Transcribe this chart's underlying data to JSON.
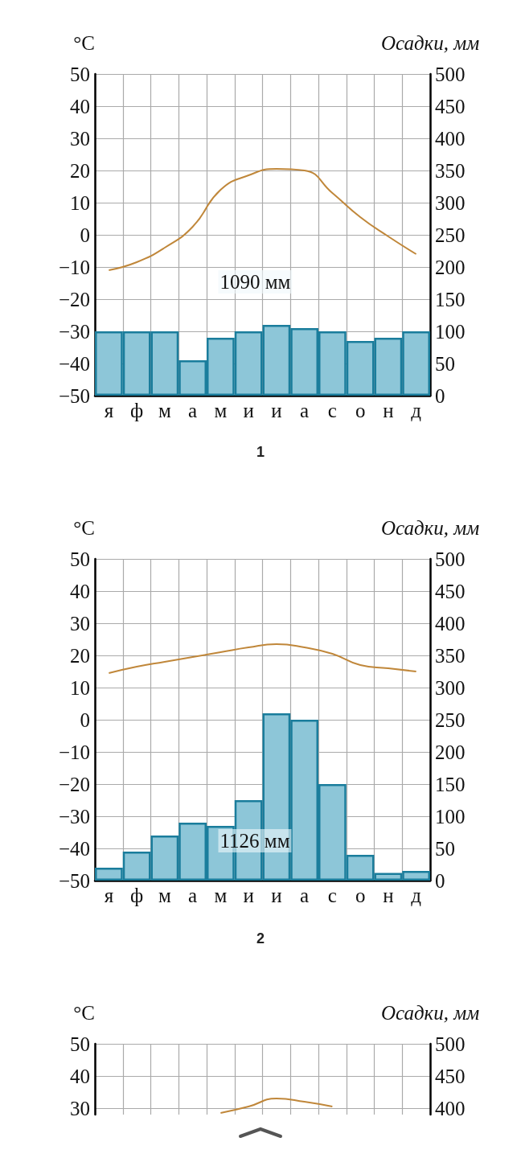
{
  "chart_data": [
    {
      "type": "bar",
      "title": "1",
      "ylabel": "°C",
      "y2label": "Осадки, мм",
      "categories": [
        "я",
        "ф",
        "м",
        "а",
        "м",
        "и",
        "и",
        "а",
        "с",
        "о",
        "н",
        "д"
      ],
      "series": [
        {
          "axis": "y2",
          "color": "#8dc6d8",
          "values": [
            100,
            100,
            100,
            55,
            90,
            100,
            110,
            105,
            100,
            85,
            90,
            100
          ]
        },
        {
          "type": "line",
          "color": "#c0873a",
          "values": [
            -11,
            -8.5,
            -4,
            2.5,
            14,
            18.5,
            20.5,
            20,
            13,
            5.5,
            -0.5,
            -6
          ]
        }
      ],
      "ylim": [
        -50,
        50
      ],
      "yticks": [
        {
          "value": -50,
          "label": "−50"
        },
        {
          "value": -40,
          "label": "−40"
        },
        {
          "value": -30,
          "label": "−30"
        },
        {
          "value": -20,
          "label": "−20"
        },
        {
          "value": -10,
          "label": "−10"
        },
        0,
        10,
        20,
        30,
        40,
        50
      ],
      "y2lim": [
        0,
        500
      ],
      "y2ticks": [
        0,
        50,
        100,
        150,
        200,
        250,
        300,
        350,
        400,
        450,
        500
      ],
      "annotations": [
        "1090 мм"
      ],
      "grid": true,
      "marker": "none"
    },
    {
      "type": "bar",
      "title": "2",
      "ylabel": "°C",
      "y2label": "Осадки, мм",
      "categories": [
        "я",
        "ф",
        "м",
        "а",
        "м",
        "и",
        "и",
        "а",
        "с",
        "о",
        "н",
        "д"
      ],
      "series": [
        {
          "axis": "y2",
          "color": "#8dc6d8",
          "values": [
            20,
            45,
            70,
            90,
            85,
            125,
            260,
            250,
            150,
            40,
            12,
            15
          ]
        },
        {
          "type": "line",
          "color": "#c0873a",
          "values": [
            14.5,
            16.5,
            18,
            19.5,
            21,
            22.5,
            23.5,
            22.5,
            20.5,
            17,
            16,
            15
          ]
        }
      ],
      "ylim": [
        -50,
        50
      ],
      "yticks": [
        {
          "value": -50,
          "label": "−50"
        },
        {
          "value": -40,
          "label": "−40"
        },
        {
          "value": -30,
          "label": "−30"
        },
        {
          "value": -20,
          "label": "−20"
        },
        {
          "value": -10,
          "label": "−10"
        },
        0,
        10,
        20,
        30,
        40,
        50
      ],
      "y2lim": [
        0,
        500
      ],
      "y2ticks": [
        0,
        50,
        100,
        150,
        200,
        250,
        300,
        350,
        400,
        450,
        500
      ],
      "annotations": [
        "1126 мм"
      ],
      "grid": true,
      "marker": "none"
    },
    {
      "type": "line",
      "ylabel": "°C",
      "y2label": "Осадки, мм",
      "categories": [
        null,
        null,
        null,
        null,
        null,
        null,
        null,
        null,
        null,
        null,
        null,
        null
      ],
      "series": [
        {
          "color": "#c0873a",
          "values": [
            null,
            null,
            null,
            null,
            28.5,
            30.5,
            33,
            32,
            30.5,
            null,
            null,
            null
          ]
        }
      ],
      "ylim": [
        28,
        50
      ],
      "yticks": [
        30,
        40,
        50
      ],
      "y2lim": [
        390,
        500
      ],
      "y2ticks": [
        400,
        450,
        500
      ],
      "grid": true,
      "marker": "none"
    }
  ]
}
